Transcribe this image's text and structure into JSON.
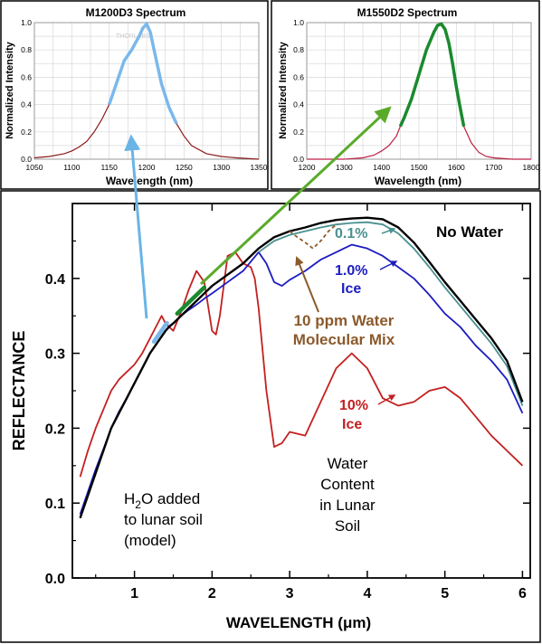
{
  "chart_data": [
    {
      "type": "line",
      "title": "M1200D3 Spectrum",
      "xlabel": "Wavelength (nm)",
      "ylabel": "Normalized Intensity",
      "xlim": [
        1050,
        1350
      ],
      "ylim": [
        0,
        1.0
      ],
      "xticks": [
        1050,
        1100,
        1150,
        1200,
        1250,
        1300,
        1350
      ],
      "yticks": [
        0.0,
        0.2,
        0.4,
        0.6,
        0.8,
        1.0
      ],
      "grid": true,
      "watermark": "THORLABS",
      "colors": {
        "line": "#8b1a1a",
        "highlight": "#7ab8ec"
      },
      "highlight_range": [
        1150,
        1240
      ],
      "series": [
        {
          "x": [
            1050,
            1070,
            1090,
            1100,
            1110,
            1120,
            1130,
            1140,
            1150,
            1160,
            1170,
            1180,
            1190,
            1195,
            1200,
            1205,
            1210,
            1220,
            1230,
            1240,
            1250,
            1260,
            1280,
            1300,
            1320,
            1350
          ],
          "values": [
            0.01,
            0.02,
            0.04,
            0.06,
            0.09,
            0.13,
            0.2,
            0.29,
            0.4,
            0.56,
            0.72,
            0.8,
            0.9,
            0.96,
            0.99,
            0.93,
            0.8,
            0.55,
            0.38,
            0.26,
            0.17,
            0.1,
            0.04,
            0.02,
            0.01,
            0.0
          ]
        }
      ]
    },
    {
      "type": "line",
      "title": "M1550D2 Spectrum",
      "xlabel": "Wavelength (nm)",
      "ylabel": "Normalized Intensity",
      "xlim": [
        1200,
        1800
      ],
      "ylim": [
        0,
        1.0
      ],
      "xticks": [
        1200,
        1300,
        1400,
        1500,
        1600,
        1700,
        1800
      ],
      "yticks": [
        0.0,
        0.2,
        0.4,
        0.6,
        0.8,
        1.0
      ],
      "grid": true,
      "colors": {
        "line": "#c01f44",
        "highlight": "#1a8a2e"
      },
      "highlight_range": [
        1450,
        1620
      ],
      "series": [
        {
          "x": [
            1200,
            1300,
            1350,
            1380,
            1400,
            1420,
            1440,
            1450,
            1460,
            1480,
            1500,
            1520,
            1540,
            1550,
            1560,
            1570,
            1580,
            1590,
            1600,
            1610,
            1620,
            1640,
            1660,
            1680,
            1700,
            1750,
            1800
          ],
          "values": [
            0.0,
            0.0,
            0.01,
            0.03,
            0.06,
            0.1,
            0.17,
            0.24,
            0.3,
            0.44,
            0.62,
            0.8,
            0.93,
            0.98,
            0.99,
            0.95,
            0.85,
            0.7,
            0.53,
            0.38,
            0.24,
            0.12,
            0.05,
            0.02,
            0.01,
            0.0,
            0.0
          ]
        }
      ]
    },
    {
      "type": "line",
      "xlabel": "WAVELENGTH (μm)",
      "ylabel": "REFLECTANCE",
      "xlim": [
        0.2,
        6.1
      ],
      "ylim": [
        0.0,
        0.5
      ],
      "xticks": [
        1,
        2,
        3,
        4,
        5,
        6
      ],
      "yticks": [
        0.0,
        0.1,
        0.2,
        0.3,
        0.4
      ],
      "grid": false,
      "colors": {
        "no_water": "#000000",
        "ppm": "#8b5a2b",
        "p01": "#4a9090",
        "p1": "#1c1cc0",
        "p10": "#c42020",
        "arrow_blue": "#6ab4e6",
        "arrow_green": "#5aaa2a",
        "seg_blue": "#7ab8ec",
        "seg_green": "#1a8a2e"
      },
      "series": [
        {
          "name": "No Water",
          "x": [
            0.3,
            0.4,
            0.5,
            0.6,
            0.7,
            0.8,
            0.9,
            1.0,
            1.1,
            1.2,
            1.3,
            1.4,
            1.45,
            1.5,
            1.6,
            1.7,
            1.8,
            1.9,
            2.0,
            2.2,
            2.4,
            2.6,
            2.8,
            3.0,
            3.2,
            3.4,
            3.6,
            3.8,
            4.0,
            4.2,
            4.4,
            4.6,
            4.8,
            5.0,
            5.2,
            5.4,
            5.6,
            5.8,
            6.0
          ],
          "values": [
            0.08,
            0.11,
            0.14,
            0.17,
            0.2,
            0.22,
            0.24,
            0.26,
            0.28,
            0.3,
            0.315,
            0.33,
            0.336,
            0.34,
            0.35,
            0.36,
            0.37,
            0.38,
            0.39,
            0.405,
            0.42,
            0.44,
            0.455,
            0.463,
            0.468,
            0.474,
            0.478,
            0.48,
            0.481,
            0.479,
            0.468,
            0.448,
            0.422,
            0.395,
            0.37,
            0.345,
            0.32,
            0.29,
            0.235
          ]
        },
        {
          "name": "10 ppm Water Molecular Mix",
          "x": [
            3.0,
            3.1,
            3.2,
            3.3,
            3.4,
            3.5,
            3.6
          ],
          "values": [
            0.463,
            0.455,
            0.448,
            0.44,
            0.45,
            0.463,
            0.472
          ]
        },
        {
          "name": "0.1%",
          "x": [
            2.6,
            2.8,
            3.0,
            3.2,
            3.4,
            3.6,
            3.8,
            4.0,
            4.2,
            4.4,
            4.6,
            4.8,
            5.0,
            5.2,
            5.4,
            5.6,
            5.8,
            6.0
          ],
          "values": [
            0.435,
            0.45,
            0.458,
            0.463,
            0.468,
            0.472,
            0.474,
            0.475,
            0.472,
            0.46,
            0.44,
            0.415,
            0.388,
            0.363,
            0.338,
            0.313,
            0.283,
            0.23
          ]
        },
        {
          "name": "1.0% Ice",
          "x": [
            0.3,
            0.4,
            0.5,
            0.6,
            0.7,
            0.8,
            0.9,
            1.0,
            1.1,
            1.2,
            1.3,
            1.4,
            1.5,
            1.6,
            1.7,
            1.8,
            1.9,
            2.0,
            2.2,
            2.4,
            2.6,
            2.7,
            2.8,
            2.9,
            3.0,
            3.2,
            3.4,
            3.6,
            3.8,
            4.0,
            4.2,
            4.4,
            4.6,
            4.8,
            5.0,
            5.2,
            5.4,
            5.6,
            5.8,
            6.0
          ],
          "values": [
            0.085,
            0.115,
            0.145,
            0.172,
            0.2,
            0.222,
            0.24,
            0.26,
            0.28,
            0.3,
            0.315,
            0.33,
            0.34,
            0.35,
            0.358,
            0.365,
            0.373,
            0.38,
            0.395,
            0.41,
            0.435,
            0.42,
            0.395,
            0.39,
            0.398,
            0.41,
            0.425,
            0.435,
            0.445,
            0.44,
            0.43,
            0.415,
            0.4,
            0.378,
            0.353,
            0.335,
            0.31,
            0.29,
            0.265,
            0.22
          ]
        },
        {
          "name": "10% Ice",
          "x": [
            0.3,
            0.4,
            0.5,
            0.6,
            0.7,
            0.8,
            0.9,
            1.0,
            1.1,
            1.2,
            1.3,
            1.35,
            1.4,
            1.5,
            1.6,
            1.7,
            1.8,
            1.9,
            2.0,
            2.05,
            2.1,
            2.2,
            2.3,
            2.4,
            2.5,
            2.55,
            2.6,
            2.7,
            2.8,
            2.9,
            3.0,
            3.2,
            3.4,
            3.6,
            3.8,
            4.0,
            4.2,
            4.4,
            4.6,
            4.8,
            5.0,
            5.2,
            5.4,
            5.6,
            5.8,
            6.0
          ],
          "values": [
            0.135,
            0.17,
            0.2,
            0.225,
            0.25,
            0.265,
            0.275,
            0.285,
            0.3,
            0.32,
            0.34,
            0.35,
            0.34,
            0.33,
            0.355,
            0.385,
            0.41,
            0.395,
            0.33,
            0.325,
            0.35,
            0.43,
            0.435,
            0.42,
            0.415,
            0.4,
            0.36,
            0.25,
            0.175,
            0.18,
            0.195,
            0.19,
            0.235,
            0.28,
            0.3,
            0.28,
            0.24,
            0.23,
            0.235,
            0.25,
            0.255,
            0.24,
            0.215,
            0.19,
            0.17,
            0.15
          ]
        }
      ],
      "highlight_segments": [
        {
          "series": "No Water",
          "range": [
            1.25,
            1.42
          ],
          "color": "seg_blue"
        },
        {
          "series": "No Water",
          "range": [
            1.55,
            1.9
          ],
          "color": "seg_green"
        }
      ]
    }
  ],
  "annotations": {
    "no_water": "No Water",
    "p01": "0.1%",
    "p1_line1": "1.0%",
    "p1_line2": "Ice",
    "ppm_line1": "10 ppm Water",
    "ppm_line2": "Molecular Mix",
    "p10_line1": "10%",
    "p10_line2": "Ice",
    "water_line1": "Water",
    "water_line2": "Content",
    "water_line3": "in Lunar",
    "water_line4": "Soil",
    "h2o_main": "H",
    "h2o_sub": "2",
    "h2o_rest": "O added",
    "h2o_line2": "to lunar soil",
    "h2o_line3": "(model)"
  }
}
